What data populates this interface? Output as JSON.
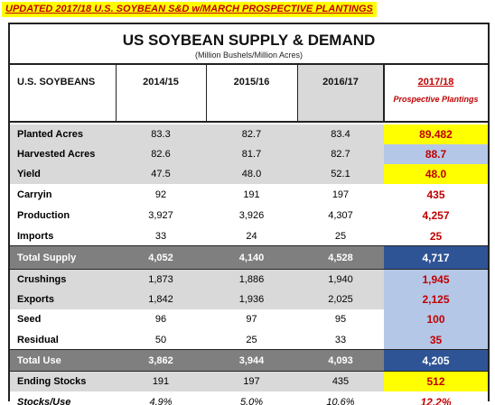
{
  "banner": "UPDATED 2017/18 U.S. SOYBEAN S&D w/MARCH PROSPECTIVE PLANTINGS",
  "title": "US SOYBEAN SUPPLY & DEMAND",
  "subtitle": "(Million Bushels/Million Acres)",
  "header": {
    "label": "U.S. SOYBEANS",
    "years": [
      "2014/15",
      "2015/16",
      "2016/17"
    ],
    "projection": "2017/18",
    "projection_note": "Prospective Plantings"
  },
  "colors": {
    "gray_row": "#d9d9d9",
    "white_row": "#ffffff",
    "total_row": "#7f7f7f",
    "total_proj": "#2f5496",
    "yellow": "#ffff00",
    "light_blue": "#b4c7e7",
    "red_text": "#c00000"
  },
  "rows": [
    {
      "label": "Planted Acres",
      "values": [
        "83.3",
        "82.7",
        "83.4"
      ],
      "proj": "89.482",
      "style": "gray",
      "proj_bg": "yellow"
    },
    {
      "label": "Harvested Acres",
      "values": [
        "82.6",
        "81.7",
        "82.7"
      ],
      "proj": "88.7",
      "style": "gray",
      "proj_bg": "blue"
    },
    {
      "label": "Yield",
      "values": [
        "47.5",
        "48.0",
        "52.1"
      ],
      "proj": "48.0",
      "style": "gray",
      "proj_bg": "yellow"
    },
    {
      "label": "Carryin",
      "values": [
        "92",
        "191",
        "197"
      ],
      "proj": "435",
      "style": "white",
      "proj_bg": "none"
    },
    {
      "label": "Production",
      "values": [
        "3,927",
        "3,926",
        "4,307"
      ],
      "proj": "4,257",
      "style": "white",
      "proj_bg": "none"
    },
    {
      "label": "Imports",
      "values": [
        "33",
        "24",
        "25"
      ],
      "proj": "25",
      "style": "white",
      "proj_bg": "none"
    },
    {
      "label": "Total Supply",
      "values": [
        "4,052",
        "4,140",
        "4,528"
      ],
      "proj": "4,717",
      "style": "total",
      "proj_bg": "navy"
    },
    {
      "label": "Crushings",
      "values": [
        "1,873",
        "1,886",
        "1,940"
      ],
      "proj": "1,945",
      "style": "gray",
      "proj_bg": "blue"
    },
    {
      "label": "Exports",
      "values": [
        "1,842",
        "1,936",
        "2,025"
      ],
      "proj": "2,125",
      "style": "gray",
      "proj_bg": "blue"
    },
    {
      "label": "Seed",
      "values": [
        "96",
        "97",
        "95"
      ],
      "proj": "100",
      "style": "white",
      "proj_bg": "blue"
    },
    {
      "label": "Residual",
      "values": [
        "50",
        "25",
        "33"
      ],
      "proj": "35",
      "style": "white",
      "proj_bg": "blue"
    },
    {
      "label": "Total Use",
      "values": [
        "3,862",
        "3,944",
        "4,093"
      ],
      "proj": "4,205",
      "style": "total",
      "proj_bg": "navy"
    },
    {
      "label": "Ending Stocks",
      "values": [
        "191",
        "197",
        "435"
      ],
      "proj": "512",
      "style": "gray",
      "proj_bg": "yellow"
    },
    {
      "label": "Stocks/Use",
      "values": [
        "4.9%",
        "5.0%",
        "10.6%"
      ],
      "proj": "12.2%",
      "style": "italic",
      "proj_bg": "none"
    }
  ]
}
